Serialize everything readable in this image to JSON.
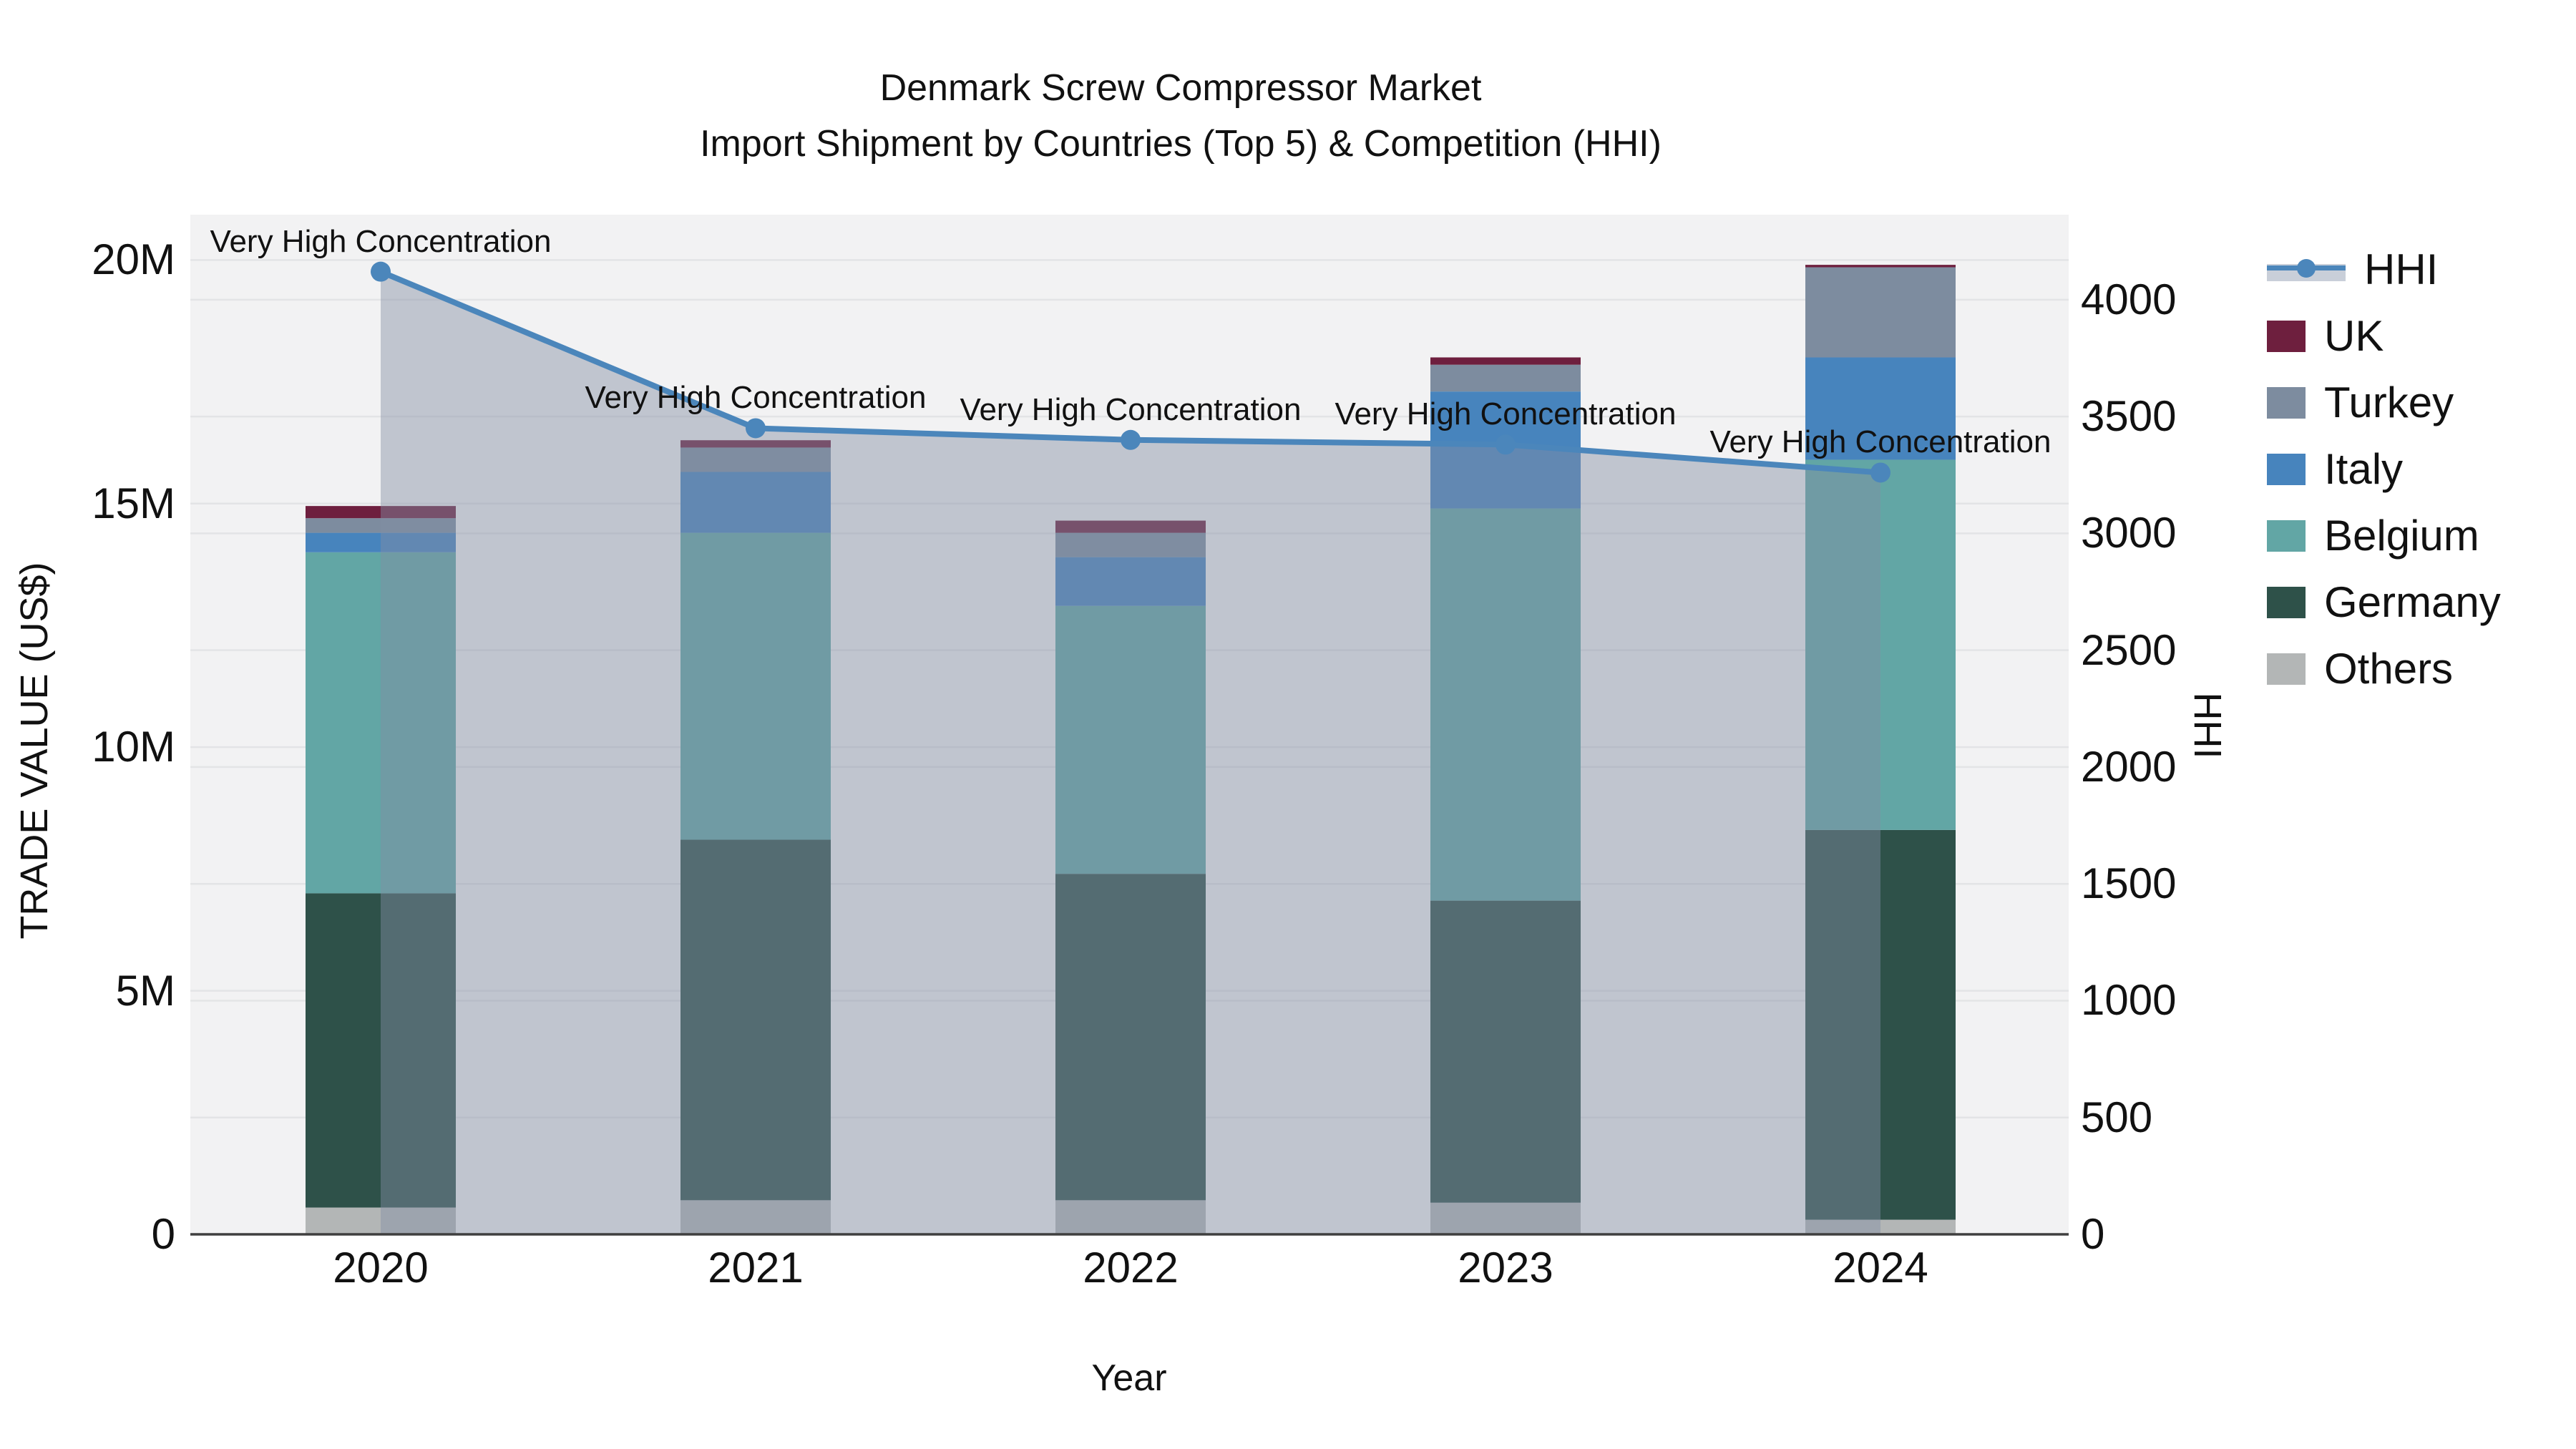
{
  "title": {
    "line1": "Denmark Screw Compressor Market",
    "line2": "Import Shipment by Countries (Top 5) & Competition (HHI)"
  },
  "axes": {
    "left": {
      "label": "TRADE VALUE (US$)",
      "ticks": [
        "0",
        "5M",
        "10M",
        "15M",
        "20M"
      ],
      "tick_values_M": [
        0,
        5,
        10,
        15,
        20
      ],
      "max_M": 20.93
    },
    "right": {
      "label": "HHI",
      "ticks": [
        "0",
        "500",
        "1000",
        "1500",
        "2000",
        "2500",
        "3000",
        "3500",
        "4000"
      ],
      "tick_values": [
        0,
        500,
        1000,
        1500,
        2000,
        2500,
        3000,
        3500,
        4000
      ],
      "max": 4364
    },
    "x": {
      "label": "Year",
      "categories": [
        "2020",
        "2021",
        "2022",
        "2023",
        "2024"
      ]
    }
  },
  "legend": {
    "order": [
      "HHI",
      "UK",
      "Turkey",
      "Italy",
      "Belgium",
      "Germany",
      "Others"
    ]
  },
  "chart_data": {
    "type": "bar+line",
    "title": "Denmark Screw Compressor Market — Import Shipment by Countries (Top 5) & Competition (HHI)",
    "categories": [
      "2020",
      "2021",
      "2022",
      "2023",
      "2024"
    ],
    "bar_value_unit": "million US$",
    "stack_order_bottom_to_top": [
      "Others",
      "Germany",
      "Belgium",
      "Italy",
      "Turkey",
      "UK"
    ],
    "series": [
      {
        "name": "Others",
        "color": "#b3b6b6",
        "values": [
          0.55,
          0.7,
          0.7,
          0.65,
          0.3
        ]
      },
      {
        "name": "Germany",
        "color": "#2e5149",
        "values": [
          6.45,
          7.4,
          6.7,
          6.2,
          8.0
        ]
      },
      {
        "name": "Belgium",
        "color": "#62a6a5",
        "values": [
          7.0,
          6.3,
          5.5,
          8.05,
          7.6
        ]
      },
      {
        "name": "Italy",
        "color": "#4784bd",
        "values": [
          0.4,
          1.25,
          1.0,
          2.4,
          2.1
        ]
      },
      {
        "name": "Turkey",
        "color": "#7d8c9f",
        "values": [
          0.3,
          0.5,
          0.5,
          0.55,
          1.85
        ]
      },
      {
        "name": "UK",
        "color": "#6e1f3e",
        "values": [
          0.25,
          0.15,
          0.25,
          0.15,
          0.05
        ]
      }
    ],
    "bar_totals_M": [
      14.95,
      16.3,
      14.65,
      18.0,
      19.9
    ],
    "line": {
      "name": "HHI",
      "color": "#4b86bb",
      "area_fill": "rgba(130,143,165,0.45)",
      "values": [
        4120,
        3450,
        3400,
        3380,
        3260
      ]
    },
    "annotations": [
      "Very High Concentration",
      "Very High Concentration",
      "Very High Concentration",
      "Very High Concentration",
      "Very High Concentration"
    ],
    "xlabel": "Year",
    "ylabel_left": "TRADE VALUE (US$)",
    "ylabel_right": "HHI",
    "ylim_left_M": [
      0,
      20.93
    ],
    "ylim_right": [
      0,
      4364
    ],
    "grid": true,
    "legend_position": "right"
  },
  "colors": {
    "plot_background": "#f2f2f3",
    "page_background": "#ffffff",
    "gridline": "#e3e4e6",
    "axis_line": "#3f3f3f",
    "text": "#111111",
    "hhi_line": "#4b86bb",
    "hhi_legend_band": "#c9cfd9"
  }
}
